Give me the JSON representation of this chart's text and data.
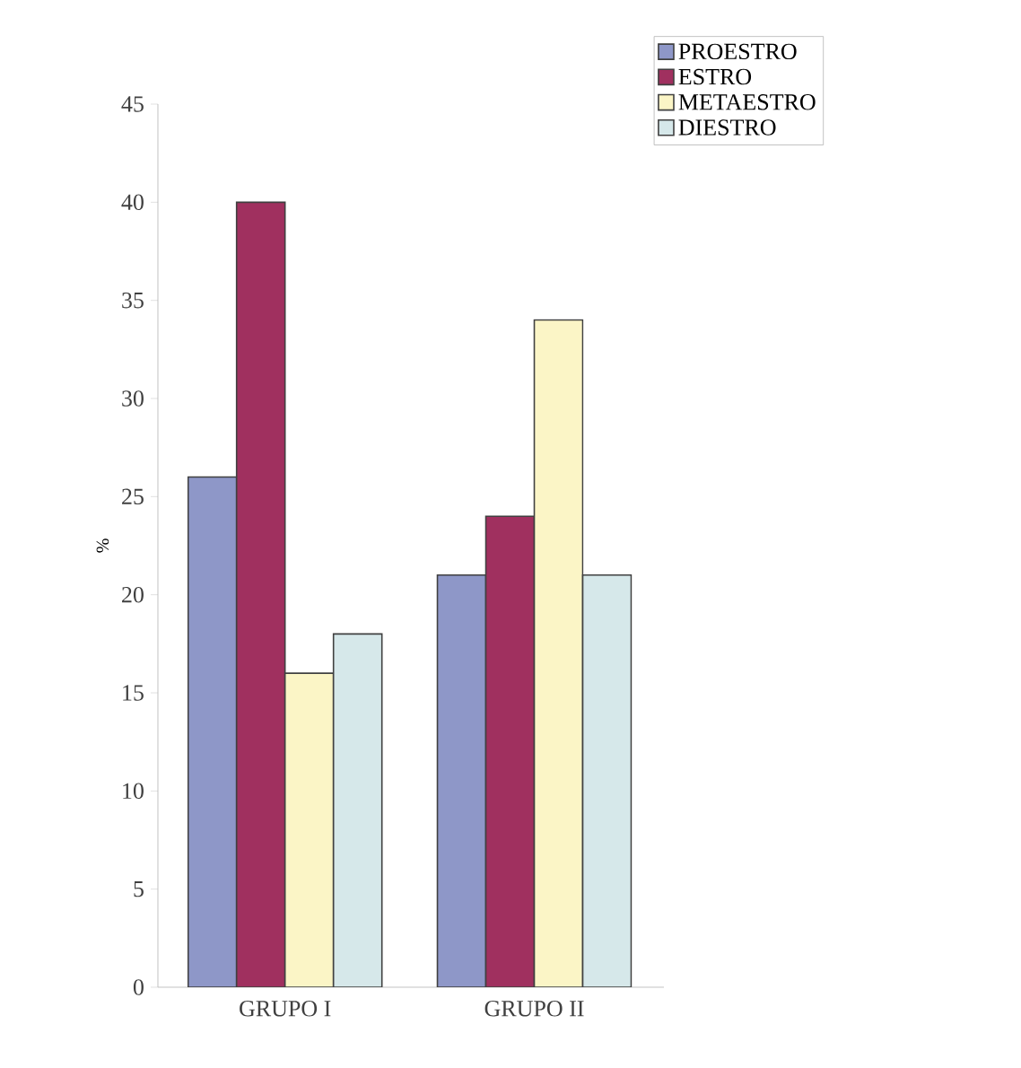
{
  "chart_data": {
    "type": "bar",
    "ylabel": "%",
    "categories": [
      "GRUPO I",
      "GRUPO II"
    ],
    "series": [
      {
        "name": "PROESTRO",
        "color": "#8e97c8",
        "values": [
          26,
          21
        ]
      },
      {
        "name": "ESTRO",
        "color": "#a0305f",
        "values": [
          40,
          24
        ]
      },
      {
        "name": "METAESTRO",
        "color": "#fbf5c6",
        "values": [
          16,
          34
        ]
      },
      {
        "name": "DIESTRO",
        "color": "#d6e8ea",
        "values": [
          18,
          21
        ]
      }
    ],
    "ylim": [
      0,
      45
    ],
    "yticks": [
      0,
      5,
      10,
      15,
      20,
      25,
      30,
      35,
      40,
      45
    ],
    "legend": "top right",
    "grid": false
  }
}
